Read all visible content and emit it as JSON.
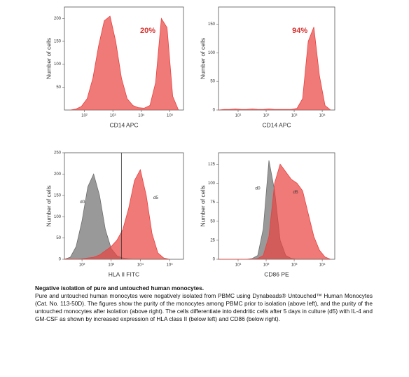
{
  "chart_data": [
    {
      "type": "area",
      "xlabel": "CD14 APC",
      "ylabel": "Number of cells",
      "annotation": "20%",
      "xlog": true,
      "xlim": [
        20,
        300000
      ],
      "ylim": [
        0,
        225
      ],
      "xticks": [
        {
          "value": 100,
          "label": "10²"
        },
        {
          "value": 1000,
          "label": "10³"
        },
        {
          "value": 10000,
          "label": "10⁴"
        },
        {
          "value": 100000,
          "label": "10⁵"
        }
      ],
      "yticks": [
        50,
        100,
        150,
        200
      ],
      "x": [
        32,
        50,
        79,
        126,
        200,
        316,
        501,
        794,
        1259,
        1995,
        3162,
        5012,
        7943,
        12589,
        19953,
        31623,
        50119,
        79433,
        125893,
        199526
      ],
      "series": [
        {
          "color": "#e8413f",
          "values": [
            0,
            2,
            8,
            25,
            70,
            140,
            195,
            205,
            150,
            70,
            25,
            10,
            5,
            4,
            10,
            60,
            200,
            180,
            30,
            0
          ]
        }
      ]
    },
    {
      "type": "area",
      "xlabel": "CD14 APC",
      "ylabel": "Number of cells",
      "annotation": "94%",
      "xlog": true,
      "xlim": [
        2,
        28000
      ],
      "ylim": [
        0,
        180
      ],
      "xticks": [
        {
          "value": 10,
          "label": "10¹"
        },
        {
          "value": 100,
          "label": "10²"
        },
        {
          "value": 1000,
          "label": "10³"
        },
        {
          "value": 10000,
          "label": "10⁴"
        }
      ],
      "yticks": [
        0,
        50,
        100,
        150
      ],
      "x": [
        2,
        3.2,
        5,
        8,
        13,
        20,
        32,
        50,
        79,
        126,
        200,
        316,
        501,
        794,
        1259,
        1995,
        3162,
        5012,
        7943,
        12589,
        19953
      ],
      "series": [
        {
          "color": "#e8413f",
          "values": [
            0,
            1,
            1,
            2,
            1,
            1,
            2,
            1,
            1,
            2,
            1,
            1,
            1,
            1,
            3,
            20,
            120,
            145,
            60,
            8,
            0
          ]
        }
      ]
    },
    {
      "type": "area",
      "xlabel": "HLA II FITC",
      "ylabel": "Number of cells",
      "xlog": true,
      "threshold": 2240,
      "xlim": [
        25,
        300000
      ],
      "ylim": [
        0,
        250
      ],
      "xticks": [
        {
          "value": 100,
          "label": "10²"
        },
        {
          "value": 1000,
          "label": "10³"
        },
        {
          "value": 10000,
          "label": "10⁴"
        },
        {
          "value": 100000,
          "label": "10⁵"
        }
      ],
      "yticks": [
        0,
        50,
        100,
        150,
        200,
        250
      ],
      "x": [
        25,
        40,
        63,
        100,
        158,
        251,
        398,
        631,
        1000,
        1585,
        2512,
        3981,
        6310,
        10000,
        15849,
        25119,
        39811,
        63096,
        100000
      ],
      "series": [
        {
          "name": "d0",
          "color": "#6e6e6e",
          "values": [
            0,
            5,
            30,
            90,
            170,
            200,
            150,
            70,
            25,
            8,
            3,
            1,
            0,
            0,
            0,
            0,
            0,
            0,
            0
          ]
        },
        {
          "name": "d5",
          "color": "#e8413f",
          "values": [
            0,
            0,
            0,
            1,
            3,
            5,
            10,
            20,
            30,
            45,
            70,
            120,
            185,
            210,
            150,
            60,
            15,
            3,
            0
          ]
        }
      ]
    },
    {
      "type": "area",
      "xlabel": "CD86 PE",
      "ylabel": "Number of cells",
      "xlog": true,
      "xlim": [
        2,
        28000
      ],
      "ylim": [
        0,
        140
      ],
      "xticks": [
        {
          "value": 10,
          "label": "10¹"
        },
        {
          "value": 100,
          "label": "10²"
        },
        {
          "value": 1000,
          "label": "10³"
        },
        {
          "value": 10000,
          "label": "10⁴"
        }
      ],
      "yticks": [
        0,
        25,
        50,
        75,
        100,
        125
      ],
      "x": [
        2,
        3.2,
        5,
        8,
        13,
        20,
        32,
        50,
        79,
        126,
        200,
        316,
        501,
        794,
        1259,
        1995,
        3162,
        5012,
        7943,
        12589,
        19953
      ],
      "series": [
        {
          "name": "d0",
          "color": "#6e6e6e",
          "values": [
            0,
            0,
            0,
            0,
            0,
            0,
            1,
            5,
            40,
            130,
            90,
            25,
            5,
            1,
            0,
            0,
            0,
            0,
            0,
            0,
            0
          ]
        },
        {
          "name": "d5",
          "color": "#e8413f",
          "values": [
            0,
            0,
            0,
            0,
            0,
            0,
            0,
            1,
            5,
            30,
            100,
            125,
            115,
            105,
            100,
            90,
            60,
            30,
            12,
            3,
            0
          ]
        }
      ]
    }
  ],
  "caption": {
    "title": "Negative isolation of pure and untouched human monocytes.",
    "text": "Pure and untouched human monocytes were negatively isolated from PBMC using Dynabeads® Untouched™ Human Monocytes (Cat. No. 113-50D). The figures show the purity of the monocytes among PBMC prior to isolation (above left), and the purity of the untouched monocytes after isolation (above right). The cells differentiate into dendritic cells after 5 days in culture (d5) with IL-4 and GM-CSF as shown by increased expression of HLA class II (below left) and CD86 (below right)."
  }
}
